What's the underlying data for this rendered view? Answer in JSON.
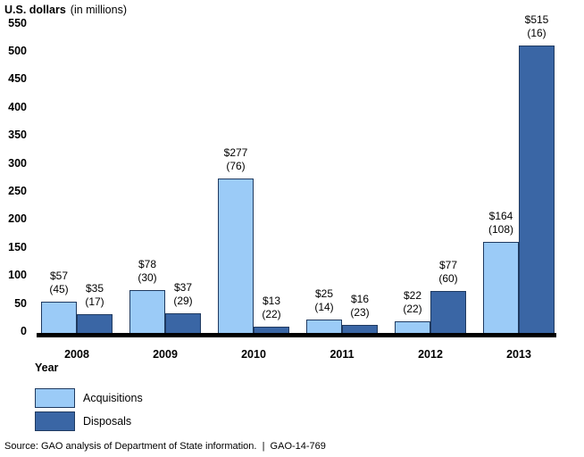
{
  "title": {
    "bold": "U.S. dollars",
    "unit": "(in millions)"
  },
  "x_axis_title": "Year",
  "legend": {
    "items": [
      {
        "label": "Acquisitions",
        "color": "#9BCBF7"
      },
      {
        "label": "Disposals",
        "color": "#3A66A5"
      }
    ]
  },
  "source_note": "Source: GAO analysis of Department of State information.  |  GAO-14-769",
  "colors": {
    "bar_border": "#1F3A60",
    "axis_line": "#000000",
    "acquisitions_fill": "#9BCBF7",
    "disposals_fill": "#3A66A5"
  },
  "chart_data": {
    "type": "bar",
    "title": "U.S. dollars (in millions)",
    "xlabel": "Year",
    "ylabel": "U.S. dollars in millions",
    "categories": [
      "2008",
      "2009",
      "2010",
      "2011",
      "2012",
      "2013"
    ],
    "series": [
      {
        "name": "Acquisitions",
        "color": "#9BCBF7",
        "values": [
          57,
          78,
          277,
          25,
          22,
          164
        ],
        "counts": [
          45,
          30,
          76,
          14,
          22,
          108
        ]
      },
      {
        "name": "Disposals",
        "color": "#3A66A5",
        "values": [
          35,
          37,
          13,
          16,
          77,
          515
        ],
        "counts": [
          17,
          29,
          22,
          23,
          60,
          16
        ]
      }
    ],
    "bar_label_format": "$<value> then (<count>) on second line",
    "ylim": [
      0,
      550
    ],
    "ytick_step": 50,
    "grid": false,
    "legend_position": "bottom-left"
  }
}
